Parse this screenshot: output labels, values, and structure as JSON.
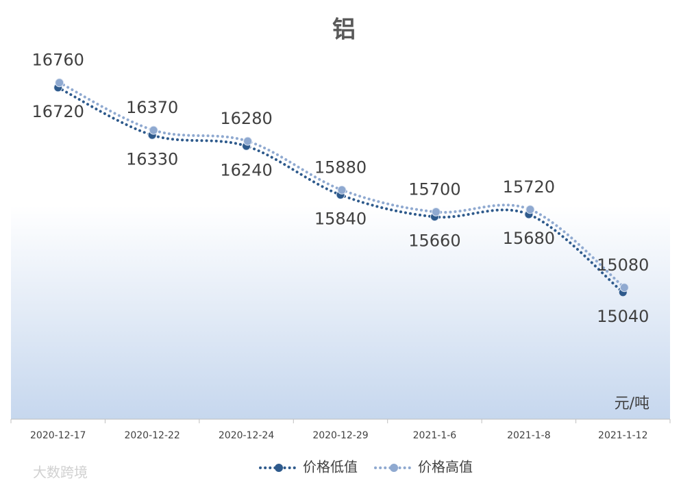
{
  "chart_data": {
    "type": "line",
    "title": "铝",
    "unit_label": "元/吨",
    "watermark": "大数跨境",
    "categories": [
      "2020-12-17",
      "2020-12-22",
      "2020-12-24",
      "2020-12-29",
      "2021-1-6",
      "2021-1-8",
      "2021-1-12"
    ],
    "series": [
      {
        "name": "价格低值",
        "color": "#2e5a8c",
        "values": [
          16720,
          16330,
          16240,
          15840,
          15660,
          15680,
          15040
        ]
      },
      {
        "name": "价格高值",
        "color": "#8fa9d0",
        "values": [
          16760,
          16370,
          16280,
          15880,
          15700,
          15720,
          15080
        ]
      }
    ],
    "ylim": [
      14000,
      17000
    ],
    "smooth": true
  }
}
